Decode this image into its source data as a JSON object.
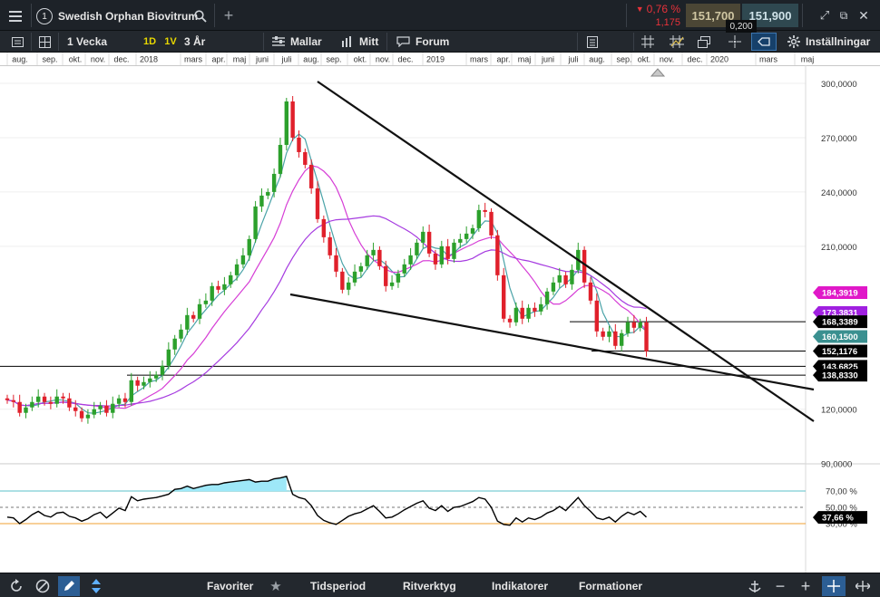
{
  "topbar": {
    "menu_icon": "hamburger-menu-icon",
    "instrument_index": "1",
    "instrument_name": "Swedish Orphan Biovitrum",
    "change_pct": "0,76 %",
    "change_abs": "1,175",
    "change_direction": "down",
    "bid": "151,700",
    "ask": "151,900",
    "spread": "0,200"
  },
  "toolbar": {
    "period": "1 Vecka",
    "range_1d": "1D",
    "range_1y": "1V",
    "range_3y": "3 År",
    "templates": "Mallar",
    "mine": "Mitt",
    "forum": "Forum",
    "settings": "Inställningar"
  },
  "bottombar": {
    "favorites": "Favoriter",
    "timeperiod": "Tidsperiod",
    "drawtools": "Ritverktyg",
    "indicators": "Indikatorer",
    "formations": "Formationer"
  },
  "colors": {
    "up": "#2ca02c",
    "down": "#e0202b",
    "ma_short": "#4aa3a8",
    "ma_mid": "#d63ed6",
    "ma_long": "#a63ce0",
    "rsi_fill": "#9ee8f8",
    "rsi_upper": "#5bc0c8",
    "rsi_lower": "#f0a030"
  },
  "chart_data": {
    "type": "candlestick",
    "instrument": "Swedish Orphan Biovitrum",
    "interval": "1 Vecka",
    "x_ticks": [
      "aug.",
      "sep.",
      "okt.",
      "nov.",
      "dec.",
      "2018",
      "mars",
      "apr.",
      "maj",
      "juni",
      "juli",
      "aug.",
      "sep.",
      "okt.",
      "nov.",
      "dec.",
      "2019",
      "mars",
      "apr.",
      "maj",
      "juni",
      "juli",
      "aug.",
      "sep.",
      "okt.",
      "nov.",
      "dec.",
      "2020",
      "mars",
      "maj"
    ],
    "y_ticks": [
      "300,0000",
      "270,0000",
      "240,0000",
      "210,0000",
      "120,0000",
      "90,0000"
    ],
    "ylim": [
      90,
      300
    ],
    "close": [
      125,
      124,
      118,
      121,
      124,
      127,
      124,
      123,
      127,
      126,
      121,
      119,
      115,
      117,
      120,
      122,
      118,
      123,
      126,
      124,
      136,
      133,
      135,
      137,
      139,
      144,
      153,
      159,
      164,
      172,
      170,
      178,
      180,
      188,
      186,
      189,
      194,
      200,
      205,
      214,
      232,
      238,
      240,
      250,
      266,
      290,
      270,
      262,
      255,
      242,
      225,
      215,
      205,
      196,
      186,
      190,
      196,
      199,
      205,
      208,
      199,
      188,
      190,
      195,
      200,
      205,
      212,
      218,
      206,
      200,
      210,
      203,
      212,
      214,
      217,
      220,
      230,
      229,
      216,
      194,
      170,
      168,
      176,
      170,
      176,
      174,
      178,
      185,
      190,
      194,
      189,
      197,
      208,
      190,
      180,
      163,
      160,
      163,
      155,
      162,
      168,
      165,
      168,
      152
    ],
    "price_tags": [
      {
        "label": "184,3919",
        "series": "MA long",
        "color": "#e018c8"
      },
      {
        "label": "173,3831",
        "series": "MA mid",
        "color": "#a020e0"
      },
      {
        "label": "168,3389",
        "color": "#000000"
      },
      {
        "label": "160,1500",
        "series": "MA short",
        "color": "#3a9090"
      },
      {
        "label": "152,1176",
        "color": "#000000"
      },
      {
        "label": "143,6825",
        "color": "#000000"
      },
      {
        "label": "138,8330",
        "color": "#000000"
      }
    ],
    "rsi": {
      "upper": "70,00 %",
      "mid": "50,00 %",
      "lower": "30,00 %",
      "current": "37,66 %",
      "values": [
        38,
        37,
        30,
        35,
        41,
        45,
        40,
        38,
        43,
        44,
        39,
        37,
        33,
        36,
        41,
        44,
        37,
        43,
        49,
        46,
        63,
        58,
        60,
        61,
        62,
        64,
        66,
        72,
        73,
        76,
        73,
        75,
        77,
        78,
        78,
        80,
        81,
        82,
        83,
        84,
        81,
        82,
        82,
        85,
        86,
        88,
        66,
        62,
        60,
        52,
        40,
        34,
        31,
        29,
        34,
        39,
        42,
        44,
        48,
        52,
        45,
        37,
        38,
        42,
        47,
        51,
        55,
        58,
        49,
        46,
        52,
        45,
        50,
        51,
        54,
        57,
        62,
        60,
        50,
        33,
        29,
        28,
        37,
        32,
        37,
        35,
        38,
        43,
        46,
        51,
        46,
        54,
        62,
        52,
        45,
        37,
        35,
        38,
        32,
        39,
        44,
        41,
        45,
        38
      ]
    }
  }
}
